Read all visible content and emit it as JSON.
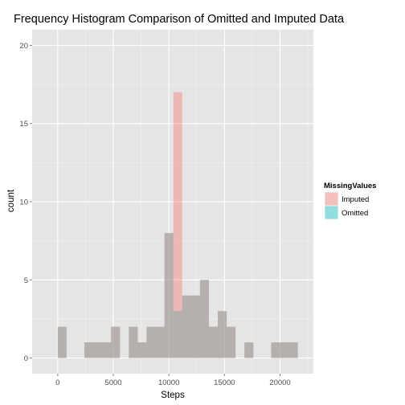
{
  "chart_data": {
    "type": "bar",
    "title": "Frequency Histogram Comparison of Omitted and Imputed Data",
    "xlabel": "Steps",
    "ylabel": "count",
    "xlim": [
      -2300,
      23000
    ],
    "ylim": [
      -1,
      21
    ],
    "x_ticks": [
      0,
      5000,
      10000,
      15000,
      20000
    ],
    "x_tick_labels": [
      "0",
      "5000",
      "10000",
      "15000",
      "20000"
    ],
    "y_ticks": [
      0,
      5,
      10,
      15,
      20
    ],
    "y_tick_labels": [
      "0",
      "5",
      "10",
      "15",
      "20"
    ],
    "grid": true,
    "legend_placement": "right",
    "legend_title": "MissingValues",
    "bin_width": 800,
    "bin_starts": [
      0,
      2400,
      3200,
      4000,
      4800,
      6400,
      7200,
      8000,
      8800,
      9600,
      10400,
      11200,
      12000,
      12800,
      13600,
      14400,
      15200,
      16800,
      19200,
      20000,
      20800
    ],
    "series": [
      {
        "name": "Imputed",
        "color": "#f8766d",
        "values": [
          2,
          1,
          1,
          1,
          2,
          2,
          1,
          2,
          2,
          8,
          17,
          4,
          4,
          5,
          2,
          3,
          2,
          1,
          1,
          1,
          1
        ]
      },
      {
        "name": "Omitted",
        "color": "#00bfc4",
        "values": [
          2,
          1,
          1,
          1,
          2,
          2,
          1,
          2,
          2,
          8,
          3,
          4,
          4,
          5,
          2,
          3,
          2,
          1,
          1,
          1,
          1
        ]
      }
    ]
  }
}
